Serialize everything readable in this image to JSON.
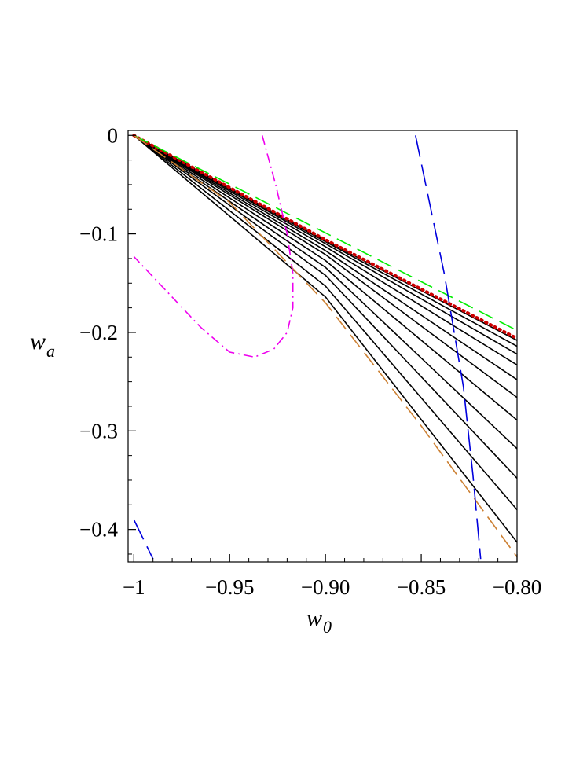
{
  "chart_data": {
    "type": "line",
    "xlabel": "w",
    "xlabel_sub": "0",
    "ylabel": "w",
    "ylabel_sub": "a",
    "xlim": [
      -1.003,
      -0.8
    ],
    "ylim": [
      -0.433,
      0.005
    ],
    "x_ticks": [
      {
        "value": -1,
        "label": "-1"
      },
      {
        "value": -0.95,
        "label": "-0.95"
      },
      {
        "value": -0.9,
        "label": "-0.90"
      },
      {
        "value": -0.85,
        "label": "-0.85"
      },
      {
        "value": -0.8,
        "label": "-0.80"
      }
    ],
    "x_minor_ticks": [
      -0.99,
      -0.98,
      -0.97,
      -0.96,
      -0.94,
      -0.93,
      -0.92,
      -0.91,
      -0.89,
      -0.88,
      -0.87,
      -0.86,
      -0.84,
      -0.83,
      -0.82,
      -0.81
    ],
    "y_ticks": [
      {
        "value": 0,
        "label": "0"
      },
      {
        "value": -0.1,
        "label": "-0.1"
      },
      {
        "value": -0.2,
        "label": "-0.2"
      },
      {
        "value": -0.3,
        "label": "-0.3"
      },
      {
        "value": -0.4,
        "label": "-0.4"
      }
    ],
    "y_minor_ticks": [
      -0.025,
      -0.05,
      -0.075,
      -0.125,
      -0.15,
      -0.175,
      -0.225,
      -0.25,
      -0.275,
      -0.325,
      -0.35,
      -0.375,
      -0.425
    ],
    "grid": false,
    "legend": "none",
    "series": [
      {
        "color": "#000000",
        "style": "solid",
        "x": [
          -1.0,
          -0.9,
          -0.8
        ],
        "y": [
          0.0,
          -0.107,
          -0.208
        ]
      },
      {
        "color": "#000000",
        "style": "solid",
        "x": [
          -1.0,
          -0.9,
          -0.8
        ],
        "y": [
          0.0,
          -0.108,
          -0.214
        ]
      },
      {
        "color": "#000000",
        "style": "solid",
        "x": [
          -1.0,
          -0.9,
          -0.8
        ],
        "y": [
          0.0,
          -0.11,
          -0.222
        ]
      },
      {
        "color": "#000000",
        "style": "solid",
        "x": [
          -1.0,
          -0.9,
          -0.8
        ],
        "y": [
          0.0,
          -0.113,
          -0.233
        ]
      },
      {
        "color": "#000000",
        "style": "solid",
        "x": [
          -1.0,
          -0.9,
          -0.8
        ],
        "y": [
          0.0,
          -0.117,
          -0.248
        ]
      },
      {
        "color": "#000000",
        "style": "solid",
        "x": [
          -1.0,
          -0.9,
          -0.8
        ],
        "y": [
          0.0,
          -0.121,
          -0.266
        ]
      },
      {
        "color": "#000000",
        "style": "solid",
        "x": [
          -1.0,
          -0.9,
          -0.8
        ],
        "y": [
          0.0,
          -0.127,
          -0.289
        ]
      },
      {
        "color": "#000000",
        "style": "solid",
        "x": [
          -1.0,
          -0.9,
          -0.8
        ],
        "y": [
          0.0,
          -0.134,
          -0.318
        ]
      },
      {
        "color": "#000000",
        "style": "solid",
        "x": [
          -1.0,
          -0.9,
          -0.8
        ],
        "y": [
          0.0,
          -0.142,
          -0.348
        ]
      },
      {
        "color": "#000000",
        "style": "solid",
        "x": [
          -1.0,
          -0.9,
          -0.8
        ],
        "y": [
          0.0,
          -0.153,
          -0.38
        ]
      },
      {
        "color": "#000000",
        "style": "solid",
        "x": [
          -1.0,
          -0.9,
          -0.8
        ],
        "y": [
          0.0,
          -0.164,
          -0.413
        ]
      },
      {
        "color": "#cc0000",
        "style": "dotted",
        "x": [
          -1.0,
          -0.9,
          -0.8
        ],
        "y": [
          0.0,
          -0.106,
          -0.206
        ]
      },
      {
        "color": "#00ee00",
        "style": "dashed",
        "x": [
          -1.0,
          -0.8
        ],
        "y": [
          0.0,
          -0.198
        ]
      },
      {
        "color": "#cc8033",
        "style": "dashed",
        "x": [
          -1.0,
          -0.95,
          -0.9,
          -0.85,
          -0.8
        ],
        "y": [
          0.0,
          -0.068,
          -0.17,
          -0.295,
          -0.428
        ]
      },
      {
        "color": "#0000dd",
        "style": "longdash",
        "x": [
          -0.853,
          -0.838,
          -0.828,
          -0.823,
          -0.819
        ],
        "y": [
          0.0,
          -0.14,
          -0.255,
          -0.345,
          -0.43
        ]
      },
      {
        "color": "#0000dd",
        "style": "longdash",
        "x": [
          -1.0,
          -0.99
        ],
        "y": [
          -0.39,
          -0.43
        ]
      },
      {
        "color": "#ee00ee",
        "style": "dashdot",
        "x": [
          -0.933,
          -0.926,
          -0.92,
          -0.917,
          -0.917,
          -0.92,
          -0.927,
          -0.937,
          -0.95,
          -0.965,
          -0.982,
          -1.0
        ],
        "y": [
          0.0,
          -0.05,
          -0.1,
          -0.14,
          -0.175,
          -0.2,
          -0.217,
          -0.225,
          -0.22,
          -0.195,
          -0.16,
          -0.123
        ]
      }
    ]
  }
}
